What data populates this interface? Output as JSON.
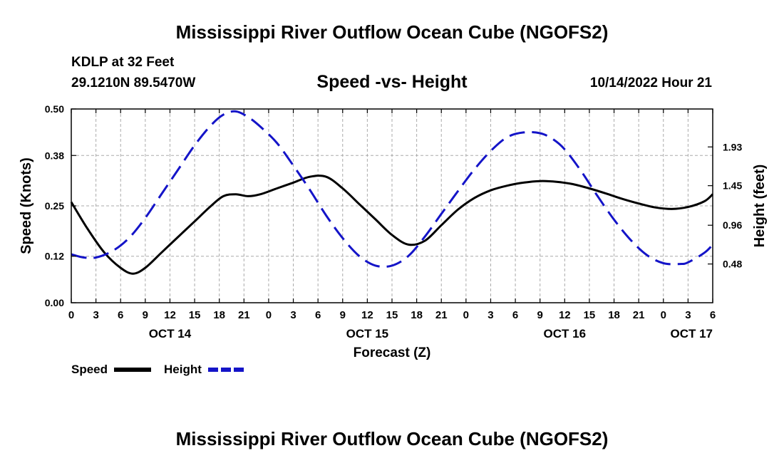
{
  "chart_data": {
    "type": "line",
    "title": "Mississippi River Outflow Ocean Cube (NGOFS2)",
    "footer_title": "Mississippi River Outflow Ocean Cube (NGOFS2)",
    "station": "KDLP at 32 Feet",
    "location": "29.1210N  89.5470W",
    "subtitle": "Speed -vs- Height",
    "issued": "10/14/2022 Hour 21",
    "xlabel": "Forecast (Z)",
    "ylabel_left": "Speed (Knots)",
    "ylabel_right": "Height (feet)",
    "x_range_hours": [
      0,
      78
    ],
    "x_ticks": [
      {
        "h": 0,
        "label": "0"
      },
      {
        "h": 3,
        "label": "3"
      },
      {
        "h": 6,
        "label": "6"
      },
      {
        "h": 9,
        "label": "9"
      },
      {
        "h": 12,
        "label": "12"
      },
      {
        "h": 15,
        "label": "15"
      },
      {
        "h": 18,
        "label": "18"
      },
      {
        "h": 21,
        "label": "21"
      },
      {
        "h": 24,
        "label": "0"
      },
      {
        "h": 27,
        "label": "3"
      },
      {
        "h": 30,
        "label": "6"
      },
      {
        "h": 33,
        "label": "9"
      },
      {
        "h": 36,
        "label": "12"
      },
      {
        "h": 39,
        "label": "15"
      },
      {
        "h": 42,
        "label": "18"
      },
      {
        "h": 45,
        "label": "21"
      },
      {
        "h": 48,
        "label": "0"
      },
      {
        "h": 51,
        "label": "3"
      },
      {
        "h": 54,
        "label": "6"
      },
      {
        "h": 57,
        "label": "9"
      },
      {
        "h": 60,
        "label": "12"
      },
      {
        "h": 63,
        "label": "15"
      },
      {
        "h": 66,
        "label": "18"
      },
      {
        "h": 69,
        "label": "21"
      },
      {
        "h": 72,
        "label": "0"
      },
      {
        "h": 75,
        "label": "3"
      },
      {
        "h": 78,
        "label": "6"
      }
    ],
    "date_labels": [
      {
        "h": 12,
        "label": "OCT 14"
      },
      {
        "h": 36,
        "label": "OCT 15"
      },
      {
        "h": 60,
        "label": "OCT 16"
      },
      {
        "h": 78,
        "label": "OCT 17",
        "align": "end"
      }
    ],
    "y_left": {
      "range": [
        0,
        0.5
      ],
      "ticks": [
        0.0,
        0.12,
        0.25,
        0.38,
        0.5
      ],
      "tick_labels": [
        "0.00",
        "0.12",
        "0.25",
        "0.38",
        "0.50"
      ]
    },
    "y_right": {
      "range": [
        0.0,
        2.4
      ],
      "ticks": [
        0.48,
        0.96,
        1.45,
        1.93
      ],
      "tick_labels": [
        "0.48",
        "0.96",
        "1.45",
        "1.93"
      ]
    },
    "series": [
      {
        "name": "Speed",
        "axis": "left",
        "color": "#000000",
        "dash": "solid",
        "x": [
          0,
          2,
          4,
          6,
          7.5,
          9,
          11,
          13,
          15,
          17,
          18.5,
          20,
          21.5,
          23,
          25,
          27,
          29,
          31,
          33,
          35,
          37,
          39,
          41,
          43,
          45,
          47,
          49,
          51,
          53,
          55,
          57,
          59,
          61,
          63,
          65,
          67,
          69,
          71,
          73,
          75,
          77,
          78
        ],
        "values": [
          0.26,
          0.19,
          0.13,
          0.09,
          0.075,
          0.09,
          0.13,
          0.17,
          0.21,
          0.25,
          0.275,
          0.28,
          0.275,
          0.28,
          0.295,
          0.31,
          0.325,
          0.325,
          0.295,
          0.255,
          0.215,
          0.175,
          0.15,
          0.16,
          0.2,
          0.24,
          0.27,
          0.29,
          0.302,
          0.31,
          0.314,
          0.312,
          0.306,
          0.295,
          0.282,
          0.268,
          0.256,
          0.246,
          0.242,
          0.247,
          0.262,
          0.28
        ]
      },
      {
        "name": "Height",
        "axis": "right",
        "color": "#1414c8",
        "dash": "dashed",
        "x": [
          0,
          1.5,
          3,
          5,
          7,
          9,
          11,
          13,
          15,
          17,
          18.5,
          20,
          21.5,
          23,
          25,
          27,
          29,
          31,
          33,
          35,
          37,
          39,
          41,
          43,
          45,
          47,
          49,
          51,
          53,
          55,
          57,
          58.5,
          60,
          62,
          64,
          66,
          68,
          70,
          72,
          74,
          75,
          77,
          78
        ],
        "values": [
          0.6,
          0.56,
          0.56,
          0.64,
          0.8,
          1.05,
          1.35,
          1.65,
          1.95,
          2.2,
          2.33,
          2.37,
          2.3,
          2.18,
          1.98,
          1.7,
          1.4,
          1.08,
          0.8,
          0.58,
          0.46,
          0.46,
          0.58,
          0.82,
          1.1,
          1.38,
          1.65,
          1.88,
          2.05,
          2.11,
          2.1,
          2.03,
          1.9,
          1.63,
          1.32,
          1.03,
          0.78,
          0.59,
          0.49,
          0.48,
          0.5,
          0.62,
          0.72
        ]
      }
    ],
    "legend": [
      {
        "label": "Speed",
        "color": "#000000",
        "dash": "solid"
      },
      {
        "label": "Height",
        "color": "#1414c8",
        "dash": "dashed"
      }
    ]
  }
}
